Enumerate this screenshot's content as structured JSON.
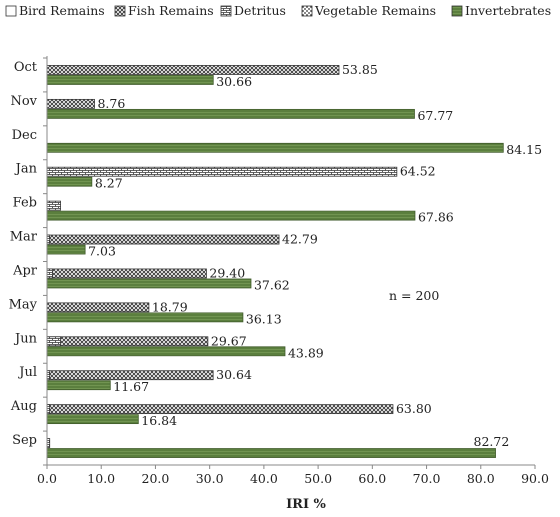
{
  "chart_data": {
    "type": "bar",
    "orientation": "horizontal",
    "categories": [
      "Oct",
      "Nov",
      "Dec",
      "Jan",
      "Feb",
      "Mar",
      "Apr",
      "May",
      "Jun",
      "Jul",
      "Aug",
      "Sep"
    ],
    "series": [
      {
        "name": "Bird Remains",
        "pattern": "plain",
        "color": "#ffffff",
        "values": [
          0,
          0,
          0,
          0,
          0,
          0,
          0,
          0,
          0,
          0,
          0,
          0
        ]
      },
      {
        "name": "Fish Remains",
        "pattern": "crosshatch",
        "color": "#444444",
        "values": [
          53.85,
          8.76,
          0,
          0,
          0,
          42.79,
          29.4,
          18.79,
          29.67,
          30.64,
          63.8,
          0
        ]
      },
      {
        "name": "Detritus",
        "pattern": "brick",
        "color": "#444444",
        "values": [
          0,
          0,
          0,
          64.52,
          2.5,
          0.5,
          1.0,
          0,
          2.5,
          0.5,
          0.5,
          0.5
        ]
      },
      {
        "name": "Vegetable Remains",
        "pattern": "dots",
        "color": "#444444",
        "values": [
          0,
          0,
          0,
          0,
          0,
          0,
          0,
          0,
          0,
          0,
          0,
          0
        ]
      },
      {
        "name": "Invertebrates",
        "pattern": "green",
        "color": "#5b7f3e",
        "values": [
          30.66,
          67.77,
          84.15,
          8.27,
          67.86,
          7.03,
          37.62,
          36.13,
          43.89,
          11.67,
          16.84,
          82.72
        ]
      }
    ],
    "data_labels": [
      {
        "category": "Oct",
        "series": "Fish Remains",
        "text": "53.85"
      },
      {
        "category": "Oct",
        "series": "Invertebrates",
        "text": "30.66"
      },
      {
        "category": "Nov",
        "series": "Fish Remains",
        "text": "8.76"
      },
      {
        "category": "Nov",
        "series": "Invertebrates",
        "text": "67.77"
      },
      {
        "category": "Dec",
        "series": "Invertebrates",
        "text": "84.15"
      },
      {
        "category": "Jan",
        "series": "Detritus",
        "text": "64.52"
      },
      {
        "category": "Jan",
        "series": "Invertebrates",
        "text": "8.27"
      },
      {
        "category": "Feb",
        "series": "Invertebrates",
        "text": "67.86"
      },
      {
        "category": "Mar",
        "series": "Fish Remains",
        "text": "42.79"
      },
      {
        "category": "Mar",
        "series": "Invertebrates",
        "text": "7.03"
      },
      {
        "category": "Apr",
        "series": "Fish Remains",
        "text": "29.40"
      },
      {
        "category": "Apr",
        "series": "Invertebrates",
        "text": "37.62"
      },
      {
        "category": "May",
        "series": "Fish Remains",
        "text": "18.79"
      },
      {
        "category": "May",
        "series": "Invertebrates",
        "text": "36.13"
      },
      {
        "category": "Jun",
        "series": "Fish Remains",
        "text": "29.67"
      },
      {
        "category": "Jun",
        "series": "Invertebrates",
        "text": "43.89"
      },
      {
        "category": "Jul",
        "series": "Fish Remains",
        "text": "30.64"
      },
      {
        "category": "Jul",
        "series": "Invertebrates",
        "text": "11.67"
      },
      {
        "category": "Aug",
        "series": "Fish Remains",
        "text": "63.80"
      },
      {
        "category": "Aug",
        "series": "Invertebrates",
        "text": "16.84"
      },
      {
        "category": "Sep",
        "series": "Invertebrates",
        "text": "82.72"
      }
    ],
    "xlabel": "IRI %",
    "xlim": [
      0,
      90
    ],
    "xticks": [
      "0.0",
      "10.0",
      "20.0",
      "30.0",
      "40.0",
      "50.0",
      "60.0",
      "70.0",
      "80.0",
      "90.0"
    ],
    "annotation": "n = 200",
    "grid": false,
    "legend_position": "top"
  }
}
